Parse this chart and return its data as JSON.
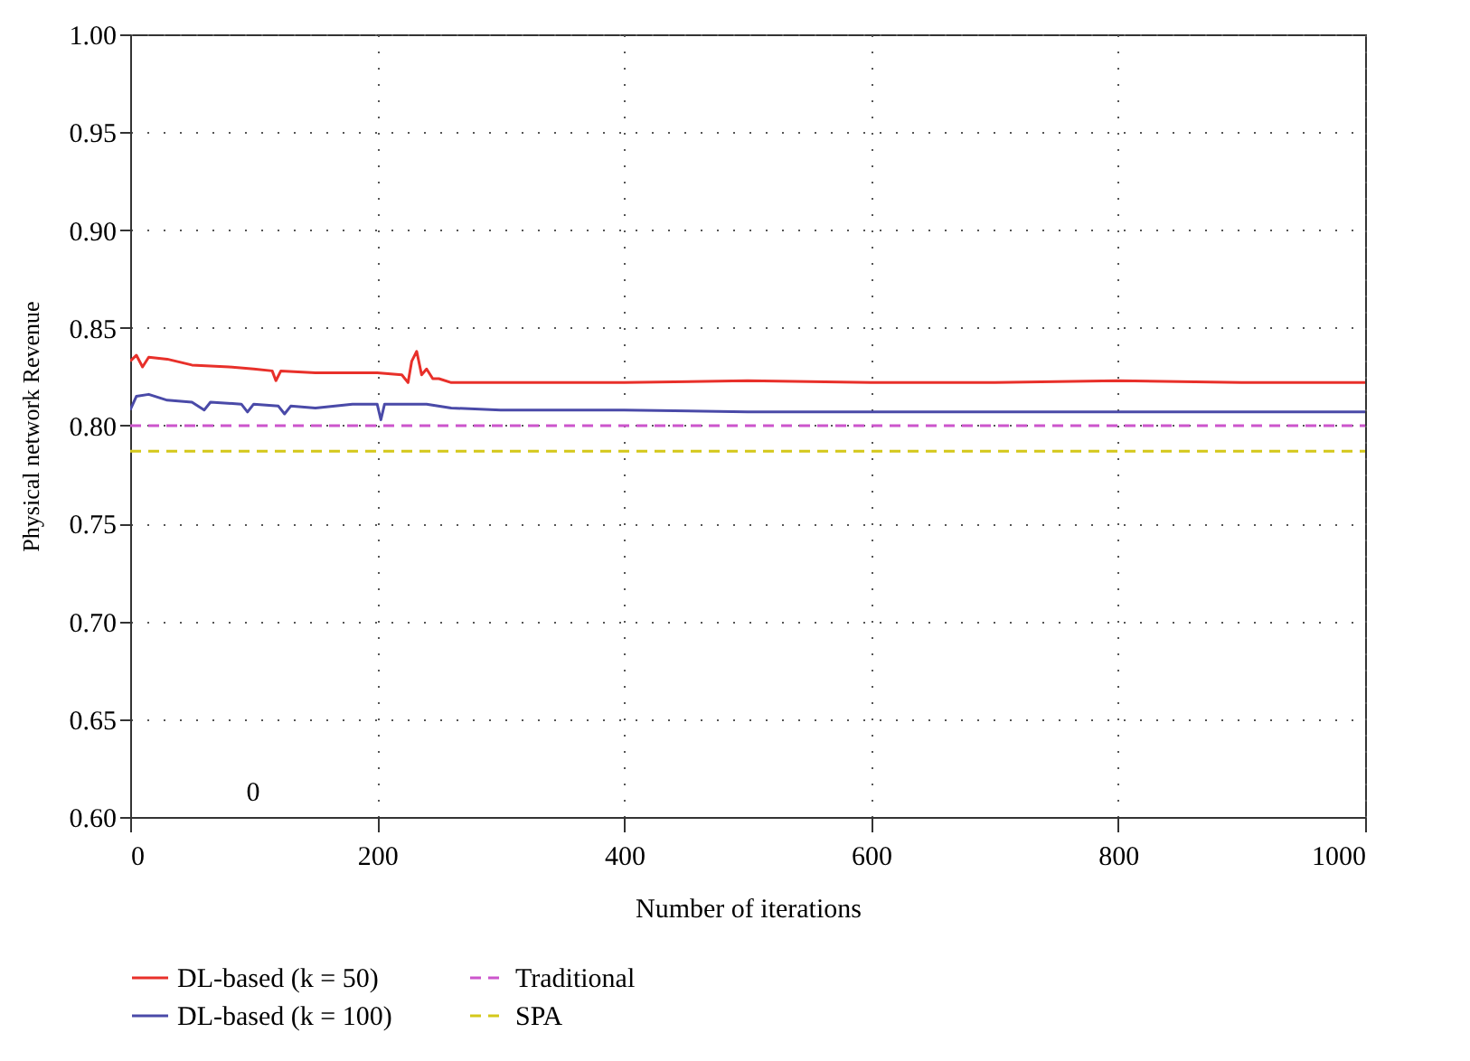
{
  "chart_data": {
    "type": "line",
    "xlabel": "Number of iterations",
    "ylabel": "Physical network Revenue",
    "xlim": [
      0,
      1000
    ],
    "xticks": [
      0,
      200,
      400,
      600,
      800,
      1000
    ],
    "ylim": [
      0.6,
      1.0
    ],
    "yticks": [
      {
        "value": 0.6,
        "label": "0.60"
      },
      {
        "value": 0.65,
        "label": "0.65"
      },
      {
        "value": 0.7,
        "label": "0.70"
      },
      {
        "value": 0.75,
        "label": "0.75"
      },
      {
        "value": 0.8,
        "label": "0.80"
      },
      {
        "value": 0.85,
        "label": "0.85"
      },
      {
        "value": 0.9,
        "label": "0.90"
      },
      {
        "value": 0.95,
        "label": "0.95"
      },
      {
        "value": 1.0,
        "label": "1.00"
      }
    ],
    "grid": true,
    "legend": "bottom",
    "annotations": [
      "0"
    ],
    "series": [
      {
        "name": "DL-based (k = 50)",
        "color": "#e8302a",
        "line_style": "solid",
        "x": [
          0,
          5,
          10,
          15,
          30,
          50,
          80,
          100,
          115,
          118,
          122,
          150,
          200,
          220,
          225,
          228,
          232,
          236,
          240,
          245,
          250,
          260,
          300,
          400,
          500,
          600,
          700,
          800,
          900,
          1000
        ],
        "values": [
          0.833,
          0.836,
          0.83,
          0.835,
          0.834,
          0.831,
          0.83,
          0.829,
          0.828,
          0.823,
          0.828,
          0.827,
          0.827,
          0.826,
          0.822,
          0.833,
          0.838,
          0.826,
          0.829,
          0.824,
          0.824,
          0.822,
          0.822,
          0.822,
          0.823,
          0.822,
          0.822,
          0.823,
          0.822,
          0.822
        ]
      },
      {
        "name": "DL-based (k = 100)",
        "color": "#4a4aa8",
        "line_style": "solid",
        "x": [
          0,
          5,
          15,
          30,
          50,
          60,
          65,
          90,
          95,
          100,
          120,
          125,
          130,
          150,
          180,
          200,
          203,
          206,
          240,
          260,
          300,
          400,
          500,
          600,
          700,
          800,
          900,
          1000
        ],
        "values": [
          0.808,
          0.815,
          0.816,
          0.813,
          0.812,
          0.808,
          0.812,
          0.811,
          0.807,
          0.811,
          0.81,
          0.806,
          0.81,
          0.809,
          0.811,
          0.811,
          0.803,
          0.811,
          0.811,
          0.809,
          0.808,
          0.808,
          0.807,
          0.807,
          0.807,
          0.807,
          0.807,
          0.807
        ]
      },
      {
        "name": "Traditional",
        "color": "#cc55cc",
        "line_style": "dashed",
        "x": [
          0,
          1000
        ],
        "values": [
          0.8,
          0.8
        ]
      },
      {
        "name": "SPA",
        "color": "#d4c81a",
        "line_style": "dashed",
        "x": [
          0,
          1000
        ],
        "values": [
          0.787,
          0.787
        ]
      }
    ]
  }
}
